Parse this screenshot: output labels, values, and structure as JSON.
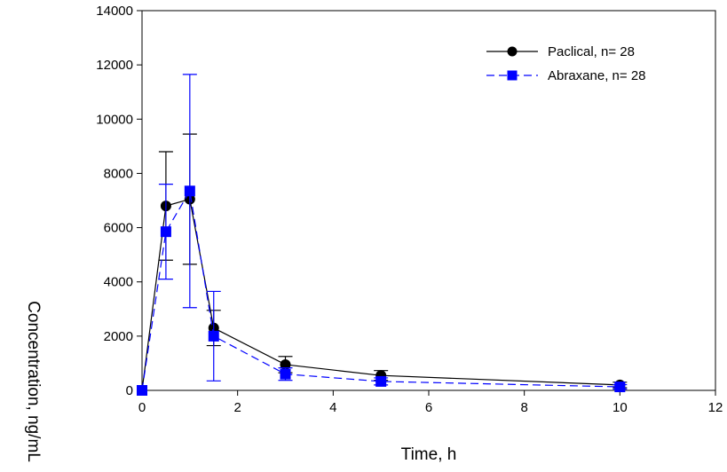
{
  "chart_data": {
    "type": "line",
    "title": "",
    "xlabel": "Time, h",
    "ylabel": "Concentration, ng/mL",
    "xlim": [
      0,
      12
    ],
    "ylim": [
      0,
      14000
    ],
    "xticks": [
      "0",
      "2",
      "4",
      "6",
      "8",
      "10",
      "12"
    ],
    "yticks": [
      "0",
      "2000",
      "4000",
      "6000",
      "8000",
      "10000",
      "12000",
      "14000"
    ],
    "grid": false,
    "legend_position": "top-right",
    "series": [
      {
        "name": "Paclical, n= 28",
        "color": "#000000",
        "marker": "circle",
        "line_style": "solid",
        "x": [
          0,
          0.5,
          1,
          1.5,
          3,
          5,
          10
        ],
        "y": [
          0,
          6800,
          7050,
          2300,
          950,
          550,
          200
        ],
        "err": [
          0,
          2000,
          2400,
          650,
          300,
          180,
          100
        ]
      },
      {
        "name": "Abraxane, n= 28",
        "color": "#0000ff",
        "marker": "square",
        "line_style": "dashed",
        "x": [
          0,
          0.5,
          1,
          1.5,
          3,
          5,
          10
        ],
        "y": [
          0,
          5850,
          7350,
          2000,
          600,
          330,
          130
        ],
        "err": [
          0,
          1750,
          4300,
          1650,
          230,
          130,
          80
        ]
      }
    ]
  }
}
